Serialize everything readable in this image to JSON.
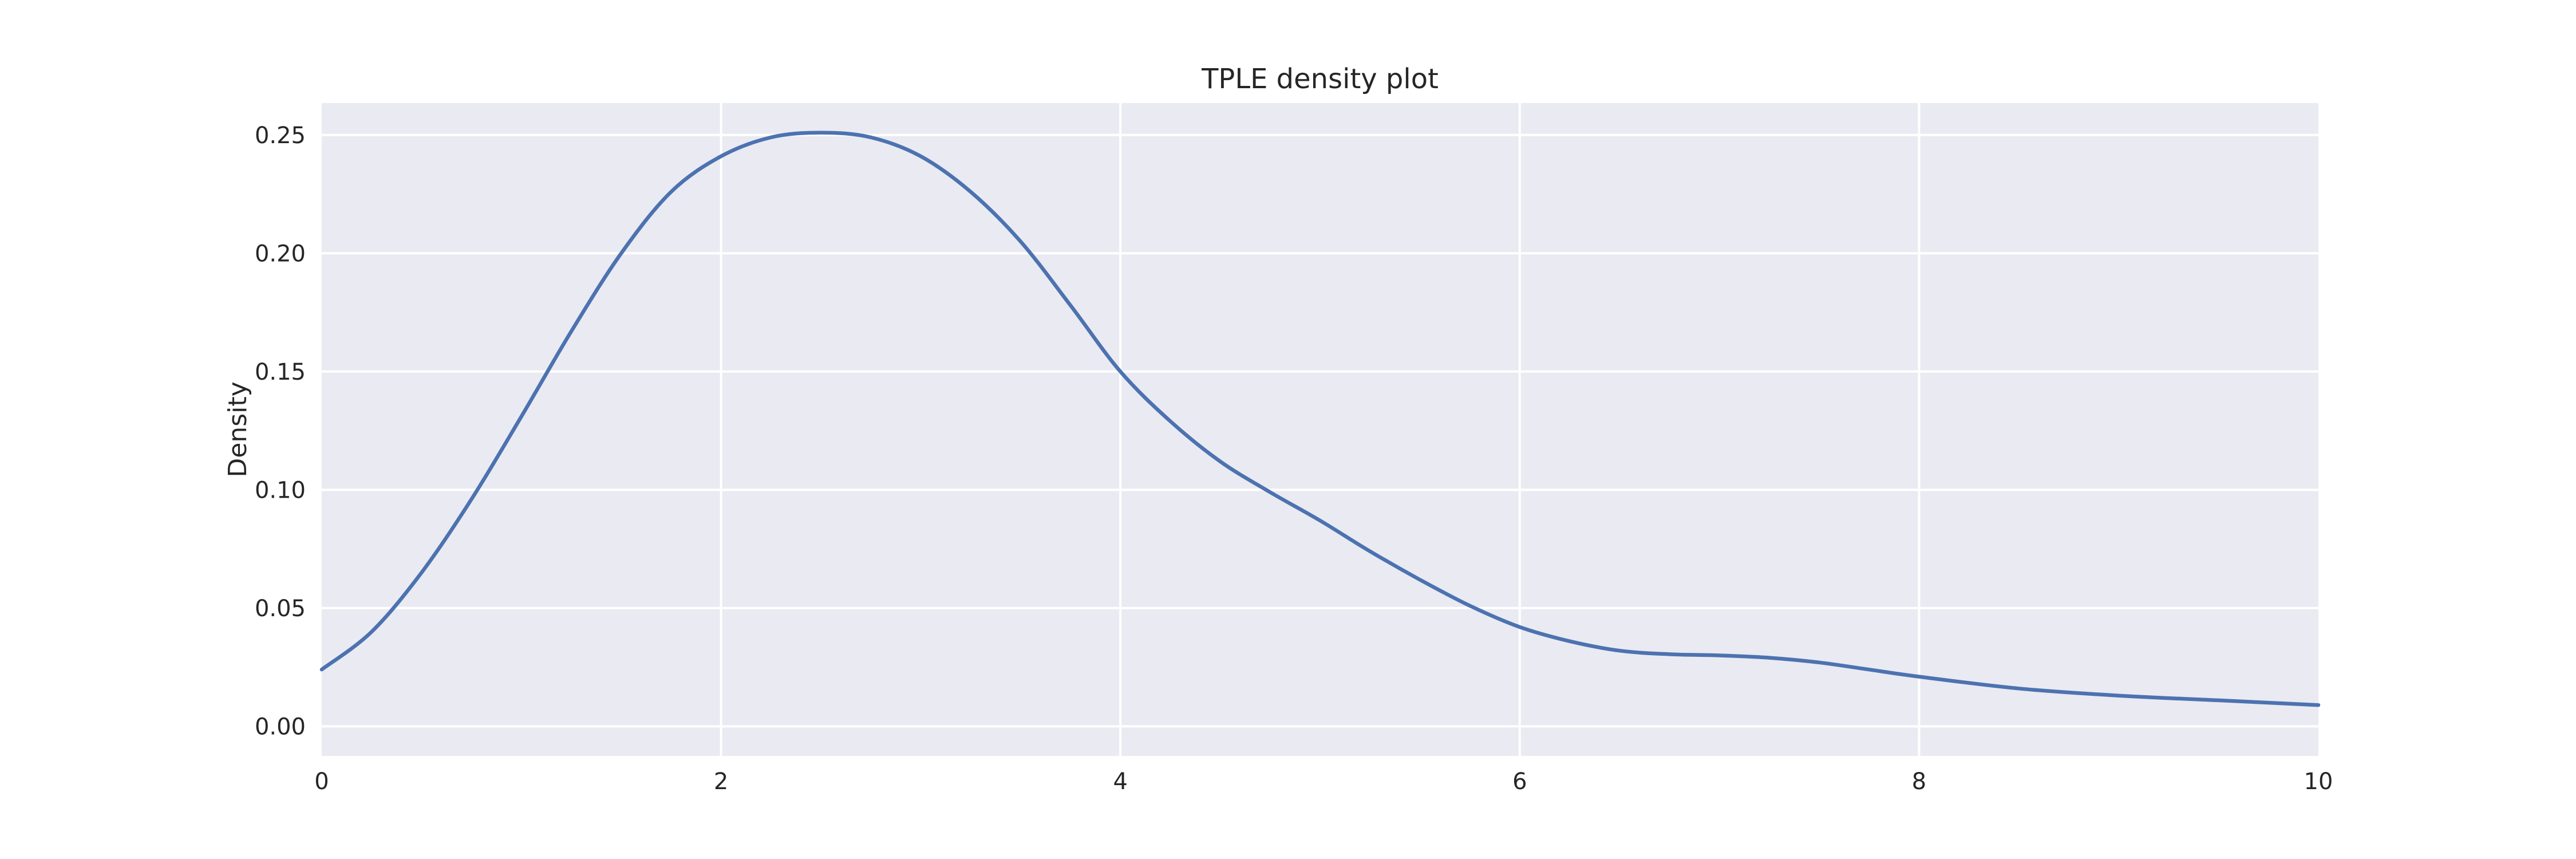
{
  "chart_data": {
    "type": "line",
    "title": "TPLE density plot",
    "xlabel": "",
    "ylabel": "Density",
    "xlim": [
      0,
      10
    ],
    "ylim": [
      -0.0125,
      0.2635
    ],
    "x_ticks": [
      0,
      2,
      4,
      6,
      8,
      10
    ],
    "x_tick_labels": [
      "0",
      "2",
      "4",
      "6",
      "8",
      "10"
    ],
    "y_ticks": [
      0.0,
      0.05,
      0.1,
      0.15,
      0.2,
      0.25
    ],
    "y_tick_labels": [
      "0.00",
      "0.05",
      "0.10",
      "0.15",
      "0.20",
      "0.25"
    ],
    "grid": true,
    "style": {
      "background": "#eaeaf2",
      "grid_color": "#ffffff",
      "text_color": "#262626"
    },
    "series": [
      {
        "color": "#4c72b0",
        "x": [
          0,
          0.25,
          0.5,
          0.75,
          1.0,
          1.25,
          1.5,
          1.75,
          2.0,
          2.25,
          2.5,
          2.75,
          3.0,
          3.25,
          3.5,
          3.75,
          4.0,
          4.25,
          4.5,
          4.75,
          5.0,
          5.25,
          5.5,
          5.75,
          6.0,
          6.25,
          6.5,
          6.75,
          7.0,
          7.25,
          7.5,
          7.75,
          8.0,
          8.5,
          9.0,
          9.5,
          10.0
        ],
        "y": [
          0.024,
          0.04,
          0.065,
          0.096,
          0.131,
          0.167,
          0.2,
          0.226,
          0.241,
          0.249,
          0.251,
          0.249,
          0.241,
          0.226,
          0.205,
          0.178,
          0.15,
          0.129,
          0.112,
          0.099,
          0.087,
          0.074,
          0.062,
          0.051,
          0.042,
          0.036,
          0.032,
          0.0305,
          0.03,
          0.029,
          0.027,
          0.024,
          0.021,
          0.016,
          0.013,
          0.011,
          0.009
        ]
      }
    ]
  }
}
